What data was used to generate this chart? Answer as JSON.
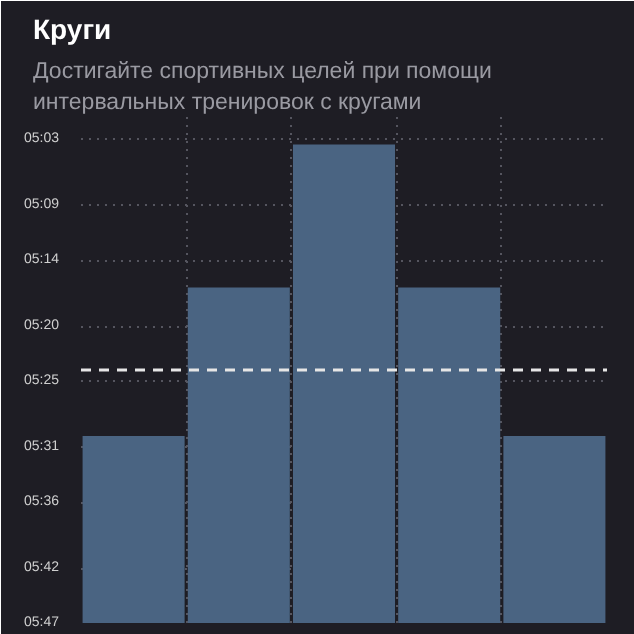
{
  "chart_data": {
    "type": "bar",
    "title": "Круги",
    "subtitle": "Достигайте спортивных целей при помощи\nинтервальных тренировок с кругами",
    "categories": [
      null,
      null,
      null,
      null,
      null
    ],
    "values": [
      -17,
      -30.5,
      -43.5,
      -30.5,
      -17
    ],
    "base": [
      347,
      347,
      347,
      347,
      347
    ],
    "color": "#4a6482",
    "ylim": [
      347,
      301
    ],
    "yticks": [
      {
        "value": 303,
        "label": "05:03"
      },
      {
        "value": 309,
        "label": "05:09"
      },
      {
        "value": 314,
        "label": "05:14"
      },
      {
        "value": 320,
        "label": "05:20"
      },
      {
        "value": 325,
        "label": "05:25"
      },
      {
        "value": 331,
        "label": "05:31"
      },
      {
        "value": 336,
        "label": "05:36"
      },
      {
        "value": 342,
        "label": "05:42"
      },
      {
        "value": 347,
        "label": "05:47"
      }
    ],
    "ref_lines": [
      {
        "axis": "y",
        "value": 324,
        "label": null,
        "color": "#e6e6e6",
        "line_style": "dashed"
      }
    ],
    "grid": true
  }
}
